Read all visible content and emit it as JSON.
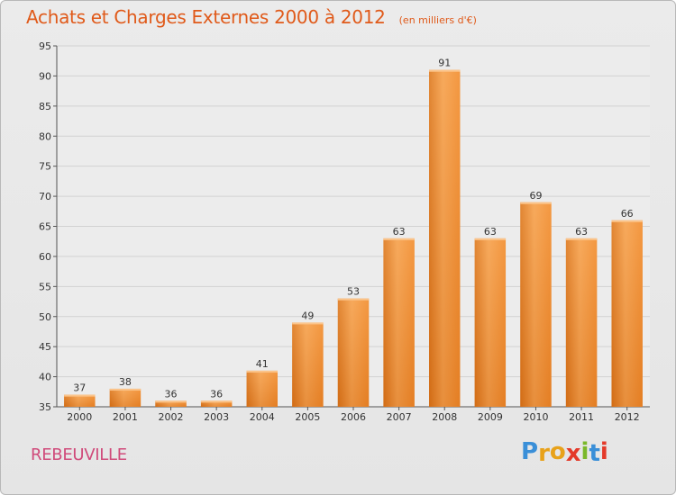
{
  "chart_data": {
    "type": "bar",
    "title": "Achats et Charges Externes 2000 à 2012",
    "subtitle": "(en milliers d'€)",
    "categories": [
      "2000",
      "2001",
      "2002",
      "2003",
      "2004",
      "2005",
      "2006",
      "2007",
      "2008",
      "2009",
      "2010",
      "2011",
      "2012"
    ],
    "values": [
      37,
      38,
      36,
      36,
      41,
      49,
      53,
      63,
      91,
      63,
      69,
      63,
      66
    ],
    "ylim": [
      35,
      95
    ],
    "yticks": [
      35,
      40,
      45,
      50,
      55,
      60,
      65,
      70,
      75,
      80,
      85,
      90,
      95
    ],
    "grid": true,
    "xlabel": "",
    "ylabel": "",
    "bar_color": "#f08a2c",
    "bar_color_light": "#f7ab5e",
    "bar_color_dark": "#cf6a14"
  },
  "footer": {
    "commune": "REBEUVILLE",
    "logo_letters": [
      "P",
      "r",
      "o",
      "x",
      "i",
      "t",
      "i"
    ],
    "logo_colors": [
      "#3a8fd8",
      "#e8a21a",
      "#e8a21a",
      "#e43a2a",
      "#7ab82a",
      "#3a8fd8",
      "#e43a2a"
    ]
  }
}
